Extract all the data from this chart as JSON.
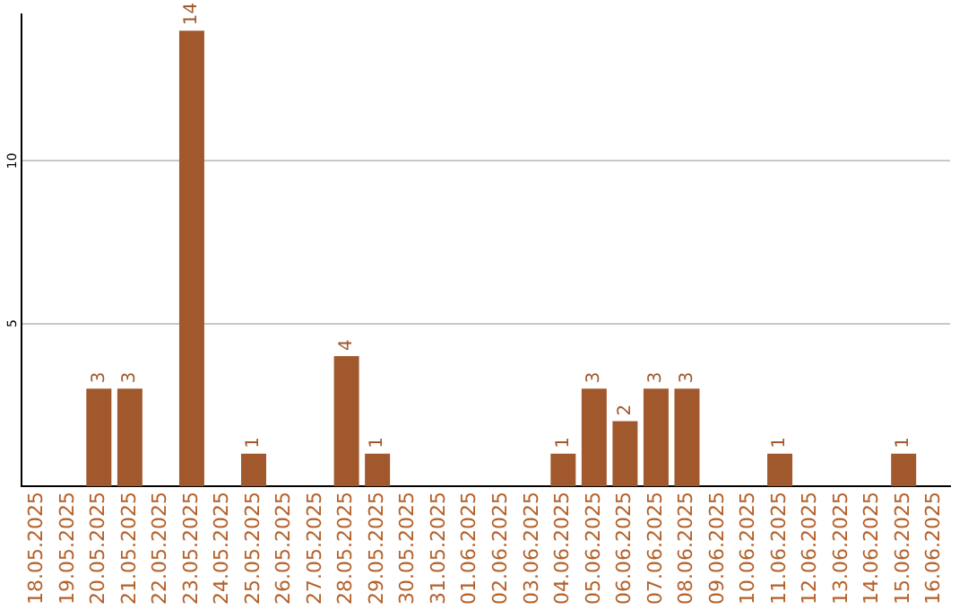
{
  "chart_data": {
    "type": "bar",
    "categories": [
      "18.05.2025",
      "19.05.2025",
      "20.05.2025",
      "21.05.2025",
      "22.05.2025",
      "23.05.2025",
      "24.05.2025",
      "25.05.2025",
      "26.05.2025",
      "27.05.2025",
      "28.05.2025",
      "29.05.2025",
      "30.05.2025",
      "31.05.2025",
      "01.06.2025",
      "02.06.2025",
      "03.06.2025",
      "04.06.2025",
      "05.06.2025",
      "06.06.2025",
      "07.06.2025",
      "08.06.2025",
      "09.06.2025",
      "10.06.2025",
      "11.06.2025",
      "12.06.2025",
      "13.06.2025",
      "14.06.2025",
      "15.06.2025",
      "16.06.2025"
    ],
    "values": [
      null,
      null,
      3,
      3,
      null,
      14,
      null,
      1,
      null,
      null,
      4,
      1,
      null,
      null,
      null,
      null,
      null,
      1,
      3,
      2,
      3,
      3,
      null,
      null,
      1,
      null,
      null,
      null,
      1,
      null
    ],
    "color": "#a0582c",
    "ylim": [
      0,
      14.5
    ],
    "yticks": [
      5,
      10
    ],
    "grid": "y",
    "data_labels": true
  }
}
